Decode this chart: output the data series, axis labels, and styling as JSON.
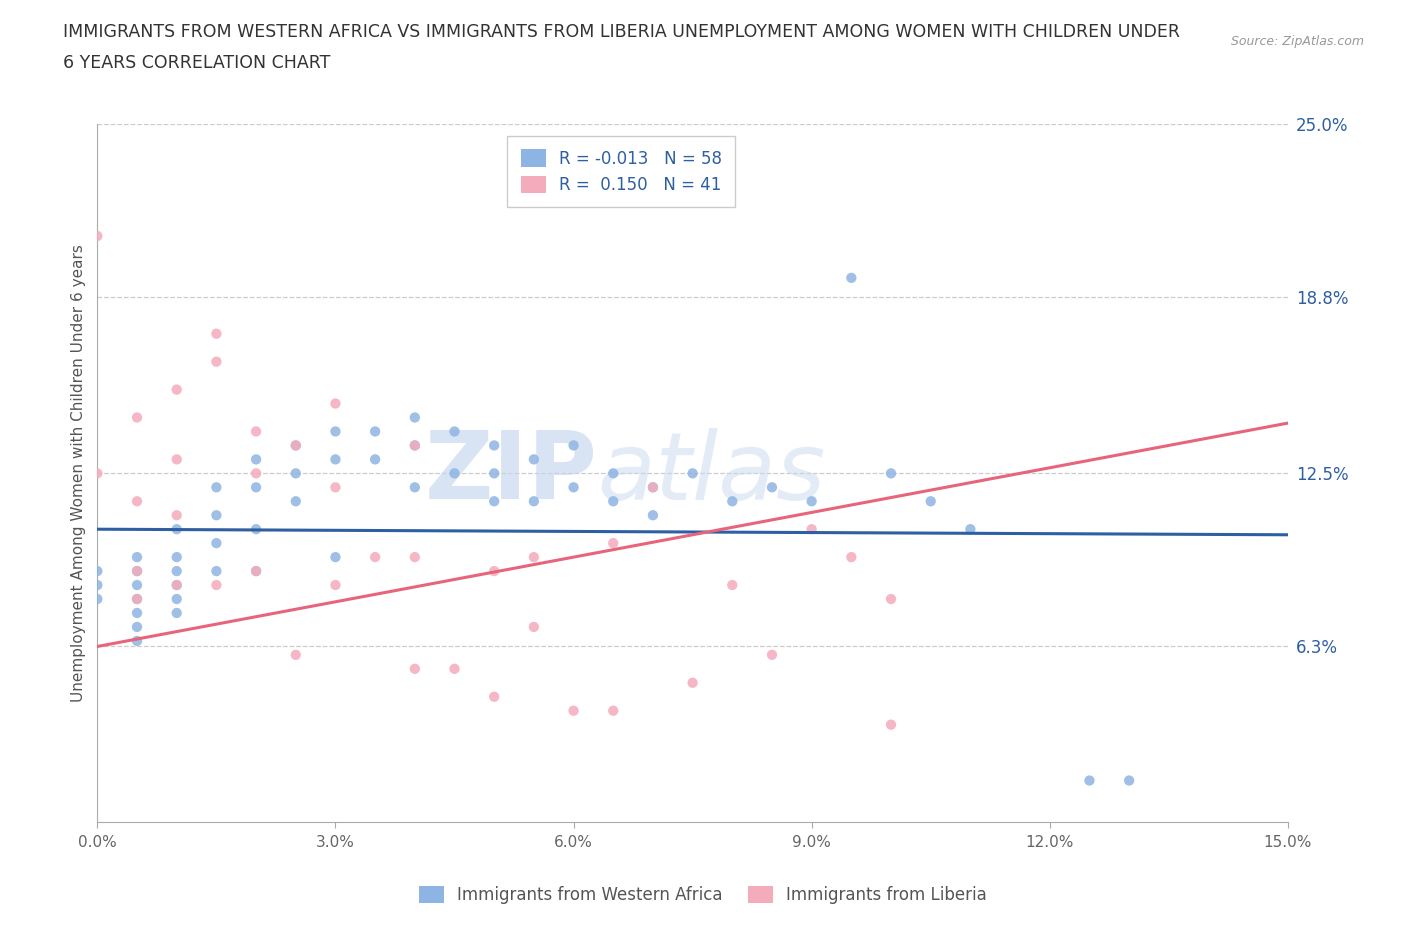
{
  "title_line1": "IMMIGRANTS FROM WESTERN AFRICA VS IMMIGRANTS FROM LIBERIA UNEMPLOYMENT AMONG WOMEN WITH CHILDREN UNDER",
  "title_line2": "6 YEARS CORRELATION CHART",
  "source": "Source: ZipAtlas.com",
  "ylabel": "Unemployment Among Women with Children Under 6 years",
  "xlim": [
    0.0,
    0.15
  ],
  "ylim": [
    0.0,
    0.25
  ],
  "xticks": [
    0.0,
    0.03,
    0.06,
    0.09,
    0.12,
    0.15
  ],
  "xticklabels": [
    "0.0%",
    "3.0%",
    "6.0%",
    "9.0%",
    "12.0%",
    "15.0%"
  ],
  "ytick_labels_right": [
    "25.0%",
    "18.8%",
    "12.5%",
    "6.3%"
  ],
  "ytick_vals_right": [
    0.25,
    0.188,
    0.125,
    0.063
  ],
  "blue_R": -0.013,
  "blue_N": 58,
  "pink_R": 0.15,
  "pink_N": 41,
  "blue_color": "#8EB4E3",
  "pink_color": "#F4ABBB",
  "blue_line_color": "#2E5FA3",
  "pink_line_color": "#E8647A",
  "watermark_zip": "ZIP",
  "watermark_atlas": "atlas",
  "background_color": "#FFFFFF",
  "scatter_alpha": 0.85,
  "scatter_size": 55,
  "blue_trend_start": 0.105,
  "blue_trend_end": 0.103,
  "pink_trend_start": 0.063,
  "pink_trend_end": 0.143,
  "blue_x": [
    0.0,
    0.0,
    0.0,
    0.005,
    0.005,
    0.005,
    0.005,
    0.005,
    0.005,
    0.005,
    0.01,
    0.01,
    0.01,
    0.01,
    0.01,
    0.01,
    0.015,
    0.015,
    0.015,
    0.015,
    0.02,
    0.02,
    0.02,
    0.02,
    0.025,
    0.025,
    0.025,
    0.03,
    0.03,
    0.03,
    0.035,
    0.035,
    0.04,
    0.04,
    0.04,
    0.045,
    0.045,
    0.05,
    0.05,
    0.05,
    0.055,
    0.055,
    0.06,
    0.06,
    0.065,
    0.065,
    0.07,
    0.07,
    0.075,
    0.08,
    0.085,
    0.09,
    0.095,
    0.1,
    0.105,
    0.11,
    0.125,
    0.13
  ],
  "blue_y": [
    0.09,
    0.085,
    0.08,
    0.095,
    0.09,
    0.085,
    0.08,
    0.075,
    0.07,
    0.065,
    0.105,
    0.095,
    0.09,
    0.085,
    0.08,
    0.075,
    0.12,
    0.11,
    0.1,
    0.09,
    0.13,
    0.12,
    0.105,
    0.09,
    0.135,
    0.125,
    0.115,
    0.14,
    0.13,
    0.095,
    0.14,
    0.13,
    0.145,
    0.135,
    0.12,
    0.14,
    0.125,
    0.135,
    0.125,
    0.115,
    0.13,
    0.115,
    0.135,
    0.12,
    0.125,
    0.115,
    0.12,
    0.11,
    0.125,
    0.115,
    0.12,
    0.115,
    0.195,
    0.125,
    0.115,
    0.105,
    0.015,
    0.015
  ],
  "pink_x": [
    0.0,
    0.0,
    0.005,
    0.005,
    0.005,
    0.005,
    0.01,
    0.01,
    0.01,
    0.01,
    0.015,
    0.015,
    0.015,
    0.02,
    0.02,
    0.02,
    0.025,
    0.025,
    0.03,
    0.03,
    0.03,
    0.035,
    0.04,
    0.04,
    0.04,
    0.045,
    0.05,
    0.05,
    0.055,
    0.055,
    0.06,
    0.065,
    0.065,
    0.07,
    0.075,
    0.08,
    0.085,
    0.09,
    0.095,
    0.1,
    0.1
  ],
  "pink_y": [
    0.21,
    0.125,
    0.145,
    0.115,
    0.09,
    0.08,
    0.155,
    0.13,
    0.11,
    0.085,
    0.175,
    0.165,
    0.085,
    0.14,
    0.125,
    0.09,
    0.135,
    0.06,
    0.15,
    0.12,
    0.085,
    0.095,
    0.135,
    0.095,
    0.055,
    0.055,
    0.09,
    0.045,
    0.095,
    0.07,
    0.04,
    0.1,
    0.04,
    0.12,
    0.05,
    0.085,
    0.06,
    0.105,
    0.095,
    0.08,
    0.035
  ]
}
